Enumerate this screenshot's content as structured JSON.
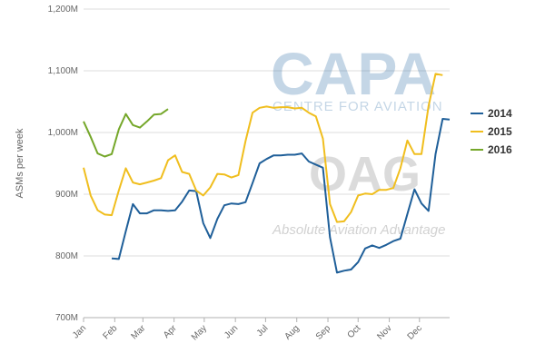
{
  "chart_data": {
    "type": "line",
    "title": "",
    "xlabel": "",
    "ylabel": "ASMs per week",
    "ylim": [
      700,
      1200
    ],
    "y_unit": "M",
    "y_ticks": [
      "700M",
      "800M",
      "900M",
      "1,000M",
      "1,100M",
      "1,200M"
    ],
    "y_tick_values": [
      700,
      800,
      900,
      1000,
      1100,
      1200
    ],
    "x_ticks": [
      "Jan",
      "Feb",
      "Mar",
      "Apr",
      "May",
      "Jun",
      "Jul",
      "Aug",
      "Sep",
      "Oct",
      "Nov",
      "Dec"
    ],
    "x_range_weeks": [
      1,
      53
    ],
    "grid": "horizontal",
    "legend_position": "right",
    "series": [
      {
        "name": "2014",
        "color": "#1f5f99",
        "start_week": 5,
        "values": [
          796,
          795,
          840,
          884,
          869,
          869,
          874,
          874,
          873,
          874,
          888,
          906,
          905,
          853,
          829,
          860,
          882,
          885,
          884,
          887,
          918,
          950,
          957,
          963,
          963,
          964,
          964,
          966,
          953,
          948,
          943,
          830,
          773,
          776,
          778,
          790,
          812,
          817,
          813,
          818,
          824,
          828,
          868,
          908,
          885,
          873,
          965,
          1022,
          1021
        ]
      },
      {
        "name": "2015",
        "color": "#f0be1e",
        "start_week": 1,
        "values": [
          943,
          898,
          874,
          867,
          866,
          906,
          942,
          919,
          916,
          919,
          922,
          926,
          955,
          963,
          936,
          933,
          906,
          898,
          911,
          933,
          932,
          927,
          931,
          986,
          1032,
          1040,
          1042,
          1040,
          1041,
          1041,
          1039,
          1040,
          1032,
          1026,
          990,
          884,
          855,
          856,
          871,
          898,
          901,
          900,
          907,
          907,
          910,
          942,
          987,
          965,
          965,
          1043,
          1095,
          1093
        ]
      },
      {
        "name": "2016",
        "color": "#75a72a",
        "start_week": 1,
        "values": [
          1018,
          993,
          966,
          961,
          965,
          1005,
          1030,
          1012,
          1008,
          1018,
          1029,
          1030,
          1038
        ]
      }
    ]
  },
  "watermark": {
    "brand": "CAPA",
    "brand_sub": "CENTRE FOR AVIATION",
    "oag": "OAG",
    "tagline": "Absolute Aviation Advantage"
  }
}
